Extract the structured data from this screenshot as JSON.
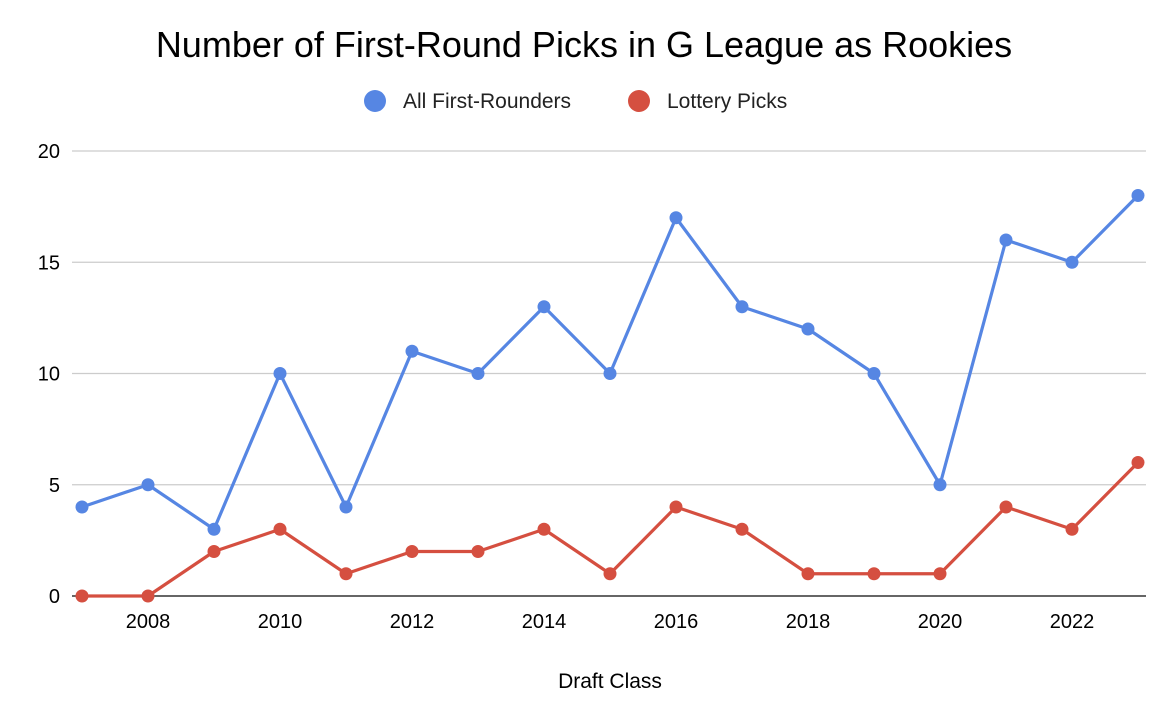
{
  "chart_data": {
    "type": "line",
    "title": "Number of First-Round Picks in G League as Rookies",
    "xlabel": "Draft Class",
    "ylabel": "",
    "x": [
      2007,
      2008,
      2009,
      2010,
      2011,
      2012,
      2013,
      2014,
      2015,
      2016,
      2017,
      2018,
      2019,
      2020,
      2021,
      2022,
      2023
    ],
    "xlim": [
      2007,
      2023
    ],
    "x_tick_labels": [
      "2008",
      "2010",
      "2012",
      "2014",
      "2016",
      "2018",
      "2020",
      "2022"
    ],
    "ylim": [
      0,
      20
    ],
    "y_tick_labels": [
      "0",
      "5",
      "10",
      "15",
      "20"
    ],
    "grid": true,
    "legend_position": "top",
    "series": [
      {
        "name": "All First-Rounders",
        "color": "#5686E3",
        "values": [
          4,
          5,
          3,
          10,
          4,
          11,
          10,
          13,
          10,
          17,
          13,
          12,
          10,
          5,
          16,
          15,
          18
        ]
      },
      {
        "name": "Lottery Picks",
        "color": "#D54F40",
        "values": [
          0,
          0,
          2,
          3,
          1,
          2,
          2,
          3,
          1,
          4,
          3,
          1,
          1,
          1,
          4,
          3,
          6
        ]
      }
    ]
  }
}
